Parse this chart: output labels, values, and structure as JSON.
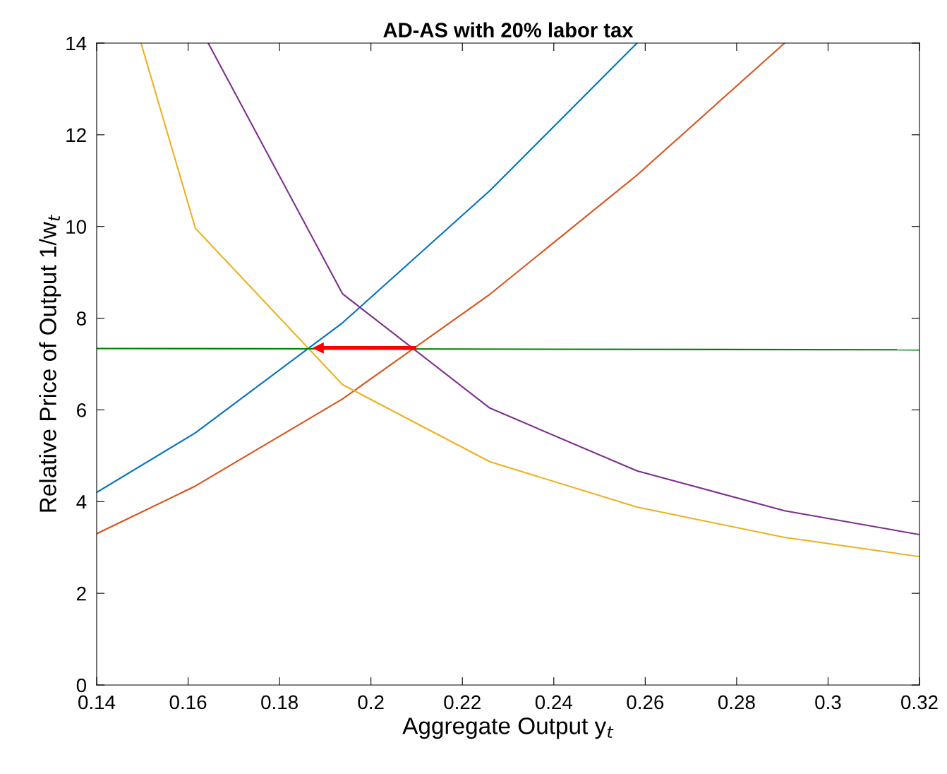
{
  "chart_data": {
    "type": "line",
    "title": "AD-AS with 20% labor tax",
    "xlabel": "Aggregate Output y$_{t}$",
    "ylabel": "Relative Price of Output 1/w$_{t}$",
    "xlim": [
      0.14,
      0.32
    ],
    "ylim": [
      0,
      14
    ],
    "xticks": [
      0.14,
      0.16,
      0.18,
      0.2,
      0.22,
      0.24,
      0.26,
      0.28,
      0.3,
      0.32
    ],
    "yticks": [
      0,
      2,
      4,
      6,
      8,
      10,
      12,
      14
    ],
    "grid": false,
    "legend": false,
    "series": [
      {
        "color": "#0072bd",
        "x": [
          0.14,
          0.1616,
          0.1938,
          0.226,
          0.2582
        ],
        "values": [
          4.2,
          5.5,
          7.9,
          10.78,
          14.0
        ]
      },
      {
        "color": "#d95319",
        "x": [
          0.14,
          0.1616,
          0.1938,
          0.226,
          0.2582,
          0.2905
        ],
        "values": [
          3.3,
          4.34,
          6.24,
          8.52,
          11.12,
          14.0
        ]
      },
      {
        "color": "#edb120",
        "x": [
          0.1497,
          0.1616,
          0.1938,
          0.226,
          0.2582,
          0.2905,
          0.32
        ],
        "values": [
          14.0,
          9.96,
          6.55,
          4.87,
          3.88,
          3.22,
          2.8
        ]
      },
      {
        "color": "#7e2f8e",
        "x": [
          0.1644,
          0.1938,
          0.226,
          0.2582,
          0.2905,
          0.32
        ],
        "values": [
          14.0,
          8.53,
          6.04,
          4.67,
          3.8,
          3.28
        ]
      },
      {
        "color": "#008000",
        "x": [
          0.14,
          0.32
        ],
        "values": [
          7.34,
          7.31
        ]
      },
      {
        "color": "#ff0000",
        "x": [
          0.2095,
          0.1885
        ],
        "values": [
          7.35,
          7.35
        ],
        "marker": "triangle"
      }
    ]
  }
}
